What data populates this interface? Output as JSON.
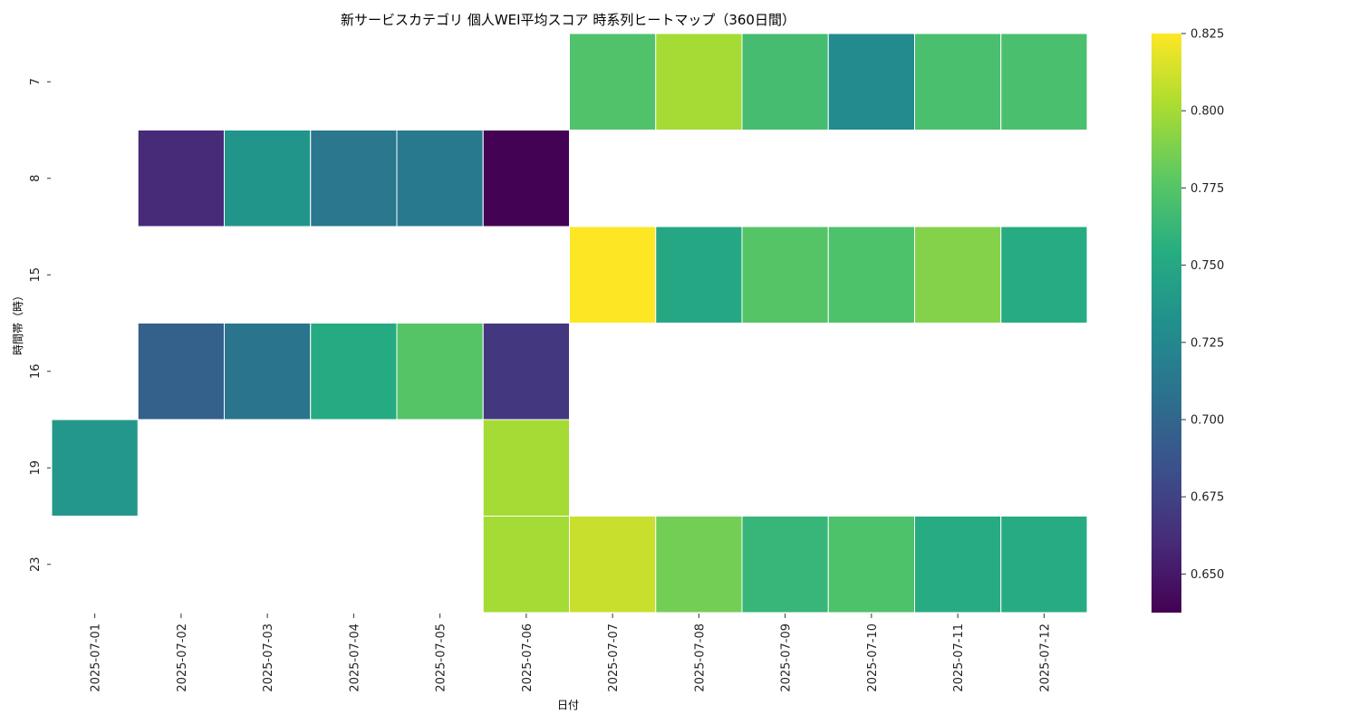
{
  "chart_data": {
    "type": "heatmap",
    "title": "新サービスカテゴリ 個人WEI平均スコア 時系列ヒートマップ（360日間）",
    "xlabel": "日付",
    "ylabel": "時間帯（時）",
    "x": [
      "2025-07-01",
      "2025-07-02",
      "2025-07-03",
      "2025-07-04",
      "2025-07-05",
      "2025-07-06",
      "2025-07-07",
      "2025-07-08",
      "2025-07-09",
      "2025-07-10",
      "2025-07-11",
      "2025-07-12"
    ],
    "y": [
      "7",
      "8",
      "15",
      "16",
      "19",
      "23"
    ],
    "values": [
      [
        null,
        null,
        null,
        null,
        null,
        null,
        0.773,
        0.8,
        0.768,
        0.727,
        0.77,
        0.77
      ],
      [
        null,
        0.66,
        0.735,
        0.712,
        0.714,
        0.638,
        null,
        null,
        null,
        null,
        null,
        null
      ],
      [
        null,
        null,
        null,
        null,
        null,
        null,
        0.825,
        0.75,
        0.775,
        0.772,
        0.79,
        0.753
      ],
      [
        null,
        0.695,
        0.71,
        0.752,
        0.775,
        0.668,
        null,
        null,
        null,
        null,
        null,
        null
      ],
      [
        0.738,
        null,
        null,
        null,
        null,
        0.8,
        null,
        null,
        null,
        null,
        null,
        null
      ],
      [
        null,
        null,
        null,
        null,
        null,
        0.8,
        0.81,
        0.785,
        0.762,
        0.772,
        0.753,
        0.753
      ]
    ],
    "colorbar": {
      "colormap": "viridis",
      "range": [
        0.6375,
        0.825
      ],
      "ticks": [
        "0.650",
        "0.675",
        "0.700",
        "0.725",
        "0.750",
        "0.775",
        "0.800",
        "0.825"
      ]
    },
    "grid": false
  }
}
